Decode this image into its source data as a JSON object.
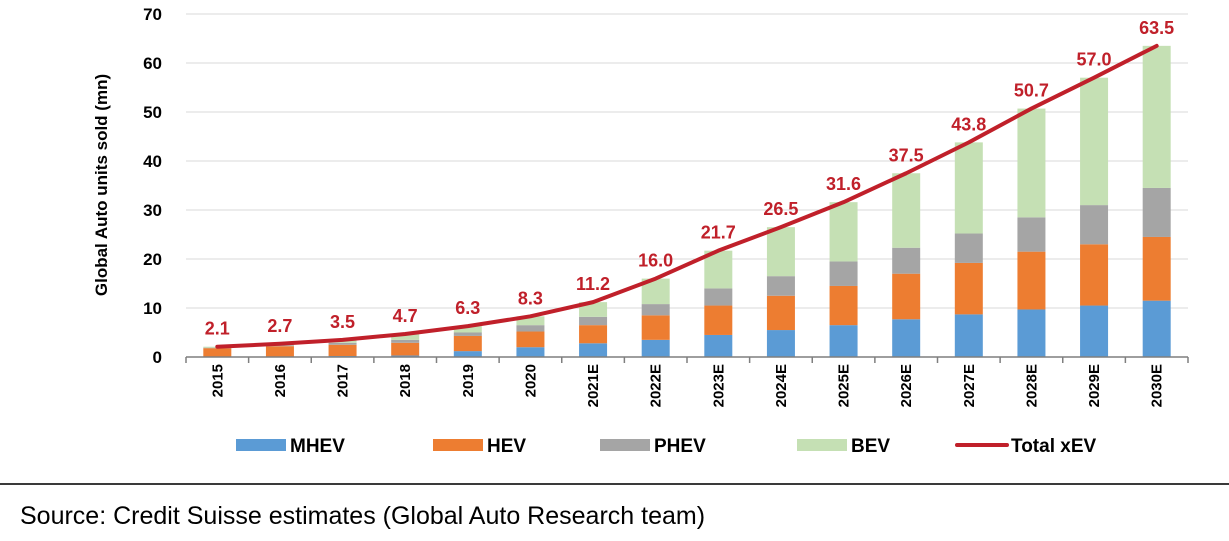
{
  "chart_data": {
    "type": "bar",
    "stacked": true,
    "ylabel": "Global Auto units sold (mn)",
    "xlabel": "",
    "ylim": [
      0,
      70
    ],
    "yticks": [
      "0",
      "10",
      "20",
      "30",
      "40",
      "50",
      "60",
      "70"
    ],
    "grid": true,
    "legend_position": "bottom",
    "categories": [
      "2015",
      "2016",
      "2017",
      "2018",
      "2019",
      "2020",
      "2021E",
      "2022E",
      "2023E",
      "2024E",
      "2025E",
      "2026E",
      "2027E",
      "2028E",
      "2029E",
      "2030E"
    ],
    "series": [
      {
        "name": "MHEV",
        "type": "bar",
        "color": "#5b9bd5",
        "values": [
          0.1,
          0.1,
          0.2,
          0.3,
          1.2,
          2.0,
          2.8,
          3.5,
          4.5,
          5.5,
          6.5,
          7.7,
          8.7,
          9.7,
          10.5,
          11.5
        ]
      },
      {
        "name": "HEV",
        "type": "bar",
        "color": "#ed7d31",
        "values": [
          1.7,
          2.1,
          2.3,
          2.6,
          3.1,
          3.2,
          3.7,
          5.0,
          6.0,
          7.0,
          8.0,
          9.3,
          10.5,
          11.8,
          12.5,
          13.0
        ]
      },
      {
        "name": "PHEV",
        "type": "bar",
        "color": "#a5a5a5",
        "values": [
          0.1,
          0.2,
          0.4,
          0.6,
          0.7,
          1.3,
          1.7,
          2.3,
          3.5,
          4.0,
          5.0,
          5.3,
          6.0,
          7.0,
          8.0,
          10.0
        ]
      },
      {
        "name": "BEV",
        "type": "bar",
        "color": "#c5e0b4",
        "values": [
          0.2,
          0.3,
          0.6,
          1.2,
          1.3,
          1.8,
          3.0,
          5.2,
          7.7,
          10.0,
          12.1,
          15.2,
          18.6,
          22.2,
          26.0,
          29.0
        ]
      },
      {
        "name": "Total xEV",
        "type": "line",
        "color": "#c0202a",
        "values": [
          2.1,
          2.7,
          3.5,
          4.7,
          6.3,
          8.3,
          11.2,
          16.0,
          21.7,
          26.5,
          31.6,
          37.5,
          43.8,
          50.7,
          57.0,
          63.5
        ],
        "labels": [
          "2.1",
          "2.7",
          "3.5",
          "4.7",
          "6.3",
          "8.3",
          "11.2",
          "16.0",
          "21.7",
          "26.5",
          "31.6",
          "37.5",
          "43.8",
          "50.7",
          "57.0",
          "63.5"
        ]
      }
    ]
  },
  "source_text": "Source: Credit Suisse estimates (Global Auto Research team)"
}
